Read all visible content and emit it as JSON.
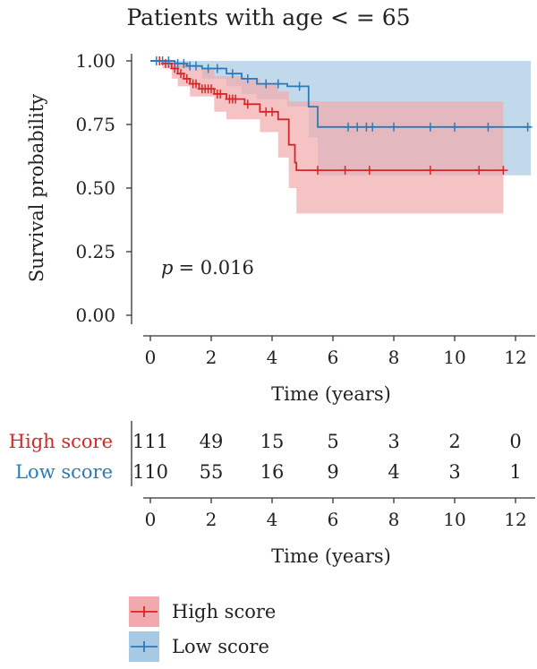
{
  "chart_data": {
    "type": "line",
    "subtype": "kaplan-meier",
    "title": "Patients with age < = 65",
    "xlabel": "Time (years)",
    "ylabel": "Survival probability",
    "xlim": [
      0,
      12.5
    ],
    "ylim": [
      0,
      1.0
    ],
    "x_ticks": [
      "0",
      "2",
      "4",
      "6",
      "8",
      "10",
      "12"
    ],
    "y_ticks": [
      "0.00",
      "0.25",
      "0.50",
      "0.75",
      "1.00"
    ],
    "annotation": {
      "p_label": "p",
      "p_value": "= 0.016"
    },
    "legend_position": "bottom-left",
    "series": [
      {
        "name": "High score",
        "color": "#d62728",
        "band_color": "#f2a9ad",
        "steps": [
          [
            0,
            1.0
          ],
          [
            0.4,
            0.99
          ],
          [
            0.7,
            0.97
          ],
          [
            0.9,
            0.95
          ],
          [
            1.1,
            0.93
          ],
          [
            1.3,
            0.91
          ],
          [
            1.6,
            0.89
          ],
          [
            2.1,
            0.87
          ],
          [
            2.5,
            0.85
          ],
          [
            3.1,
            0.83
          ],
          [
            3.6,
            0.8
          ],
          [
            4.2,
            0.77
          ],
          [
            4.55,
            0.67
          ],
          [
            4.75,
            0.6
          ],
          [
            4.8,
            0.57
          ],
          [
            11.6,
            0.57
          ]
        ],
        "upper": [
          [
            0,
            1.0
          ],
          [
            0.4,
            1.0
          ],
          [
            0.9,
            0.99
          ],
          [
            1.3,
            0.97
          ],
          [
            2.1,
            0.94
          ],
          [
            3.1,
            0.93
          ],
          [
            3.6,
            0.91
          ],
          [
            4.2,
            0.88
          ],
          [
            4.55,
            0.84
          ],
          [
            4.75,
            0.84
          ],
          [
            11.6,
            0.84
          ]
        ],
        "lower": [
          [
            0,
            1.0
          ],
          [
            0.4,
            0.97
          ],
          [
            0.7,
            0.93
          ],
          [
            0.9,
            0.9
          ],
          [
            1.3,
            0.86
          ],
          [
            2.1,
            0.8
          ],
          [
            2.5,
            0.77
          ],
          [
            3.6,
            0.72
          ],
          [
            4.2,
            0.62
          ],
          [
            4.55,
            0.5
          ],
          [
            4.8,
            0.4
          ],
          [
            11.6,
            0.4
          ]
        ],
        "censor_x": [
          0.3,
          0.5,
          0.6,
          0.8,
          1.0,
          1.2,
          1.4,
          1.5,
          1.7,
          1.8,
          1.9,
          2.0,
          2.2,
          2.3,
          2.6,
          2.7,
          2.8,
          3.2,
          3.8,
          4.0,
          5.5,
          6.4,
          7.2,
          9.2,
          10.8,
          11.6
        ]
      },
      {
        "name": "Low score",
        "color": "#2b7bba",
        "band_color": "#a8c9e4",
        "steps": [
          [
            0,
            1.0
          ],
          [
            0.8,
            0.99
          ],
          [
            1.2,
            0.98
          ],
          [
            1.7,
            0.97
          ],
          [
            2.5,
            0.95
          ],
          [
            3.0,
            0.93
          ],
          [
            3.5,
            0.91
          ],
          [
            4.5,
            0.9
          ],
          [
            5.2,
            0.82
          ],
          [
            5.5,
            0.74
          ],
          [
            12.5,
            0.74
          ]
        ],
        "upper": [
          [
            0,
            1.0
          ],
          [
            5.5,
            1.0
          ],
          [
            12.5,
            1.0
          ]
        ],
        "lower": [
          [
            0,
            1.0
          ],
          [
            0.8,
            0.97
          ],
          [
            1.7,
            0.93
          ],
          [
            2.5,
            0.9
          ],
          [
            3.0,
            0.87
          ],
          [
            3.5,
            0.85
          ],
          [
            4.5,
            0.82
          ],
          [
            5.2,
            0.7
          ],
          [
            5.5,
            0.55
          ],
          [
            12.5,
            0.55
          ]
        ],
        "censor_x": [
          0.2,
          0.4,
          0.6,
          0.9,
          1.1,
          1.3,
          1.5,
          1.9,
          2.2,
          2.7,
          3.2,
          3.8,
          4.2,
          4.9,
          6.5,
          6.8,
          7.1,
          7.3,
          8.0,
          9.2,
          10.0,
          11.1,
          12.4
        ]
      }
    ],
    "risk_table": {
      "xlabel": "Time (years)",
      "times": [
        "0",
        "2",
        "4",
        "6",
        "8",
        "10",
        "12"
      ],
      "rows": [
        {
          "name": "High score",
          "counts": [
            "111",
            "49",
            "15",
            "5",
            "3",
            "2",
            "0"
          ]
        },
        {
          "name": "Low score",
          "counts": [
            "110",
            "55",
            "16",
            "9",
            "4",
            "3",
            "1"
          ]
        }
      ]
    }
  }
}
